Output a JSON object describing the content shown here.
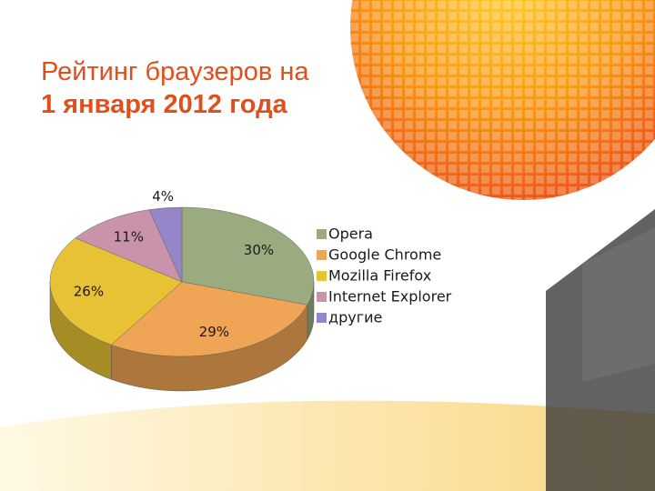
{
  "chart_data": {
    "type": "pie",
    "title": [
      "Рейтинг браузеров на",
      "1 января 2012 года"
    ],
    "categories": [
      "Opera",
      "Google Chrome",
      "Mozilla Firefox",
      "Internet Explorer",
      "другие"
    ],
    "values": [
      30,
      29,
      26,
      11,
      4
    ],
    "value_labels": [
      "30%",
      "29%",
      "26%",
      "11%",
      "4%"
    ],
    "colors": [
      "#9bab80",
      "#f0a455",
      "#e6c234",
      "#c994ab",
      "#9585c9"
    ],
    "legend": "right"
  }
}
